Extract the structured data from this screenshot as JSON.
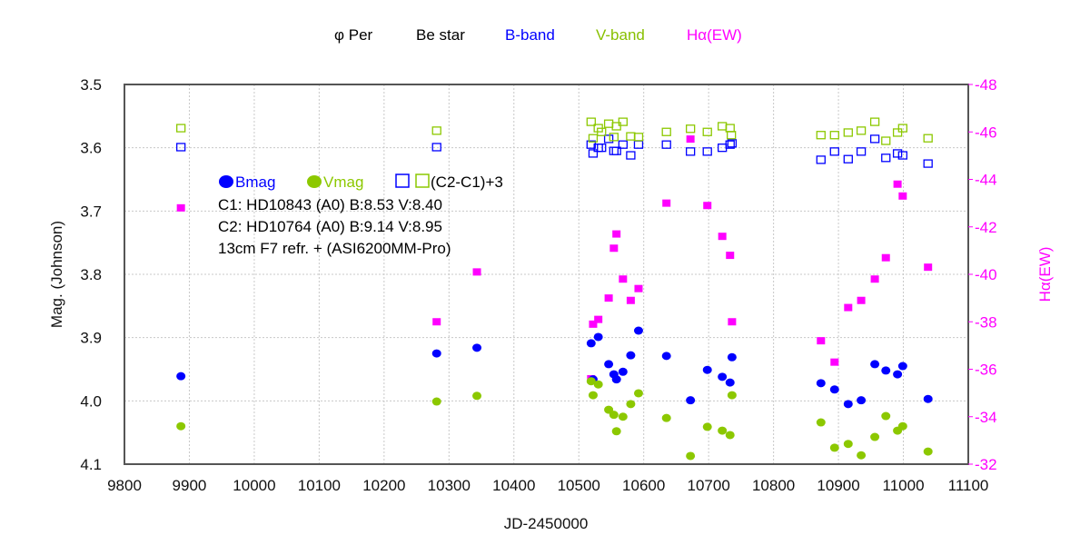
{
  "chart_data": {
    "type": "scatter",
    "header_legend": [
      {
        "text": "φ Per",
        "color": "#000000"
      },
      {
        "text": "Be star",
        "color": "#000000"
      },
      {
        "text": "B-band",
        "color": "#0000ff"
      },
      {
        "text": "V-band",
        "color": "#88c000"
      },
      {
        "text": "Hα(EW)",
        "color": "#ff00ff"
      }
    ],
    "xlabel": "JD-2450000",
    "ylabel": "Mag. (Johnson)",
    "y2label": "Hα(EW)",
    "xlim": [
      9800,
      11100
    ],
    "ylim": [
      3.5,
      4.1
    ],
    "y2lim": [
      -48,
      -32
    ],
    "y_inverted": true,
    "grid": true,
    "xticks": [
      "9800",
      "9900",
      "10000",
      "10100",
      "10200",
      "10300",
      "10400",
      "10500",
      "10600",
      "10700",
      "10800",
      "10900",
      "11000",
      "11100"
    ],
    "yticks": [
      "3.5",
      "3.6",
      "3.7",
      "3.8",
      "3.9",
      "4.0",
      "4.1"
    ],
    "y2ticks": [
      "-48",
      "-46",
      "-44",
      "-42",
      "-40",
      "-38",
      "-36",
      "-34",
      "-32"
    ],
    "inner_legend": {
      "bmag": "Bmag",
      "vmag": "Vmag",
      "comp": "(C2-C1)+3",
      "lines": [
        "C1: HD10843 (A0)  B:8.53 V:8.40",
        "C2: HD10764 (A0)  B:9.14 V:8.95",
        "13cm  F7 refr.  +  (ASI6200MM-Pro)"
      ]
    },
    "colors": {
      "b": "#0000ff",
      "v": "#8cc800",
      "h": "#ff00ff"
    },
    "series": [
      {
        "name": "Bmag",
        "axis": "left",
        "marker": "dot",
        "color": "#0000ff",
        "points": [
          [
            9887,
            3.961
          ],
          [
            10281,
            3.925
          ],
          [
            10343,
            3.916
          ],
          [
            10519,
            3.909
          ],
          [
            10522,
            3.966
          ],
          [
            10530,
            3.899
          ],
          [
            10546,
            3.942
          ],
          [
            10554,
            3.958
          ],
          [
            10558,
            3.966
          ],
          [
            10568,
            3.954
          ],
          [
            10580,
            3.928
          ],
          [
            10592,
            3.889
          ],
          [
            10635,
            3.929
          ],
          [
            10672,
            3.999
          ],
          [
            10698,
            3.951
          ],
          [
            10721,
            3.962
          ],
          [
            10733,
            3.971
          ],
          [
            10736,
            3.931
          ],
          [
            10873,
            3.972
          ],
          [
            10894,
            3.982
          ],
          [
            10915,
            4.005
          ],
          [
            10935,
            3.999
          ],
          [
            10956,
            3.942
          ],
          [
            10973,
            3.952
          ],
          [
            10991,
            3.958
          ],
          [
            10999,
            3.945
          ],
          [
            11038,
            3.997
          ]
        ]
      },
      {
        "name": "Vmag",
        "axis": "left",
        "marker": "dot",
        "color": "#8cc800",
        "points": [
          [
            9887,
            4.04
          ],
          [
            10281,
            4.001
          ],
          [
            10343,
            3.992
          ],
          [
            10519,
            3.969
          ],
          [
            10522,
            3.991
          ],
          [
            10530,
            3.974
          ],
          [
            10546,
            4.014
          ],
          [
            10554,
            4.022
          ],
          [
            10558,
            4.048
          ],
          [
            10568,
            4.025
          ],
          [
            10580,
            4.005
          ],
          [
            10592,
            3.988
          ],
          [
            10635,
            4.027
          ],
          [
            10672,
            4.087
          ],
          [
            10698,
            4.041
          ],
          [
            10721,
            4.047
          ],
          [
            10733,
            4.054
          ],
          [
            10736,
            3.991
          ],
          [
            10873,
            4.034
          ],
          [
            10894,
            4.074
          ],
          [
            10915,
            4.068
          ],
          [
            10935,
            4.086
          ],
          [
            10956,
            4.057
          ],
          [
            10973,
            4.024
          ],
          [
            10991,
            4.047
          ],
          [
            10999,
            4.04
          ],
          [
            11038,
            4.08
          ]
        ]
      },
      {
        "name": "(C2-C1)+3 B",
        "axis": "left",
        "marker": "square",
        "color": "#0000ff",
        "points": [
          [
            9887,
            3.599
          ],
          [
            10281,
            3.599
          ],
          [
            10519,
            3.595
          ],
          [
            10522,
            3.609
          ],
          [
            10530,
            3.6
          ],
          [
            10535,
            3.6
          ],
          [
            10546,
            3.586
          ],
          [
            10554,
            3.605
          ],
          [
            10558,
            3.605
          ],
          [
            10568,
            3.595
          ],
          [
            10580,
            3.612
          ],
          [
            10592,
            3.595
          ],
          [
            10635,
            3.595
          ],
          [
            10672,
            3.606
          ],
          [
            10698,
            3.606
          ],
          [
            10721,
            3.6
          ],
          [
            10733,
            3.595
          ],
          [
            10736,
            3.593
          ],
          [
            10873,
            3.619
          ],
          [
            10894,
            3.606
          ],
          [
            10915,
            3.618
          ],
          [
            10935,
            3.606
          ],
          [
            10956,
            3.586
          ],
          [
            10973,
            3.616
          ],
          [
            10991,
            3.609
          ],
          [
            10999,
            3.612
          ],
          [
            11038,
            3.625
          ]
        ]
      },
      {
        "name": "(C2-C1)+3 V",
        "axis": "left",
        "marker": "square",
        "color": "#8cc800",
        "points": [
          [
            9887,
            3.569
          ],
          [
            10281,
            3.573
          ],
          [
            10519,
            3.559
          ],
          [
            10522,
            3.585
          ],
          [
            10530,
            3.569
          ],
          [
            10535,
            3.575
          ],
          [
            10546,
            3.562
          ],
          [
            10554,
            3.583
          ],
          [
            10558,
            3.566
          ],
          [
            10568,
            3.559
          ],
          [
            10580,
            3.582
          ],
          [
            10592,
            3.583
          ],
          [
            10635,
            3.575
          ],
          [
            10672,
            3.57
          ],
          [
            10698,
            3.575
          ],
          [
            10721,
            3.566
          ],
          [
            10733,
            3.569
          ],
          [
            10735,
            3.58
          ],
          [
            10873,
            3.58
          ],
          [
            10894,
            3.58
          ],
          [
            10915,
            3.576
          ],
          [
            10935,
            3.573
          ],
          [
            10956,
            3.559
          ],
          [
            10973,
            3.589
          ],
          [
            10991,
            3.576
          ],
          [
            10999,
            3.569
          ],
          [
            11038,
            3.585
          ]
        ]
      },
      {
        "name": "Hα(EW)",
        "axis": "right",
        "marker": "filled-square",
        "color": "#ff00ff",
        "points": [
          [
            9887,
            -42.8
          ],
          [
            10281,
            -38.0
          ],
          [
            10343,
            -40.1
          ],
          [
            10519,
            -35.6
          ],
          [
            10522,
            -37.9
          ],
          [
            10530,
            -38.1
          ],
          [
            10546,
            -39.0
          ],
          [
            10554,
            -41.1
          ],
          [
            10558,
            -41.7
          ],
          [
            10568,
            -39.8
          ],
          [
            10580,
            -38.9
          ],
          [
            10592,
            -39.4
          ],
          [
            10635,
            -43.0
          ],
          [
            10672,
            -45.7
          ],
          [
            10698,
            -42.9
          ],
          [
            10721,
            -41.6
          ],
          [
            10733,
            -40.8
          ],
          [
            10736,
            -38.0
          ],
          [
            10873,
            -37.2
          ],
          [
            10894,
            -36.3
          ],
          [
            10915,
            -38.6
          ],
          [
            10935,
            -38.9
          ],
          [
            10956,
            -39.8
          ],
          [
            10973,
            -40.7
          ],
          [
            10991,
            -43.8
          ],
          [
            10999,
            -43.3
          ],
          [
            11038,
            -40.3
          ]
        ]
      }
    ]
  }
}
